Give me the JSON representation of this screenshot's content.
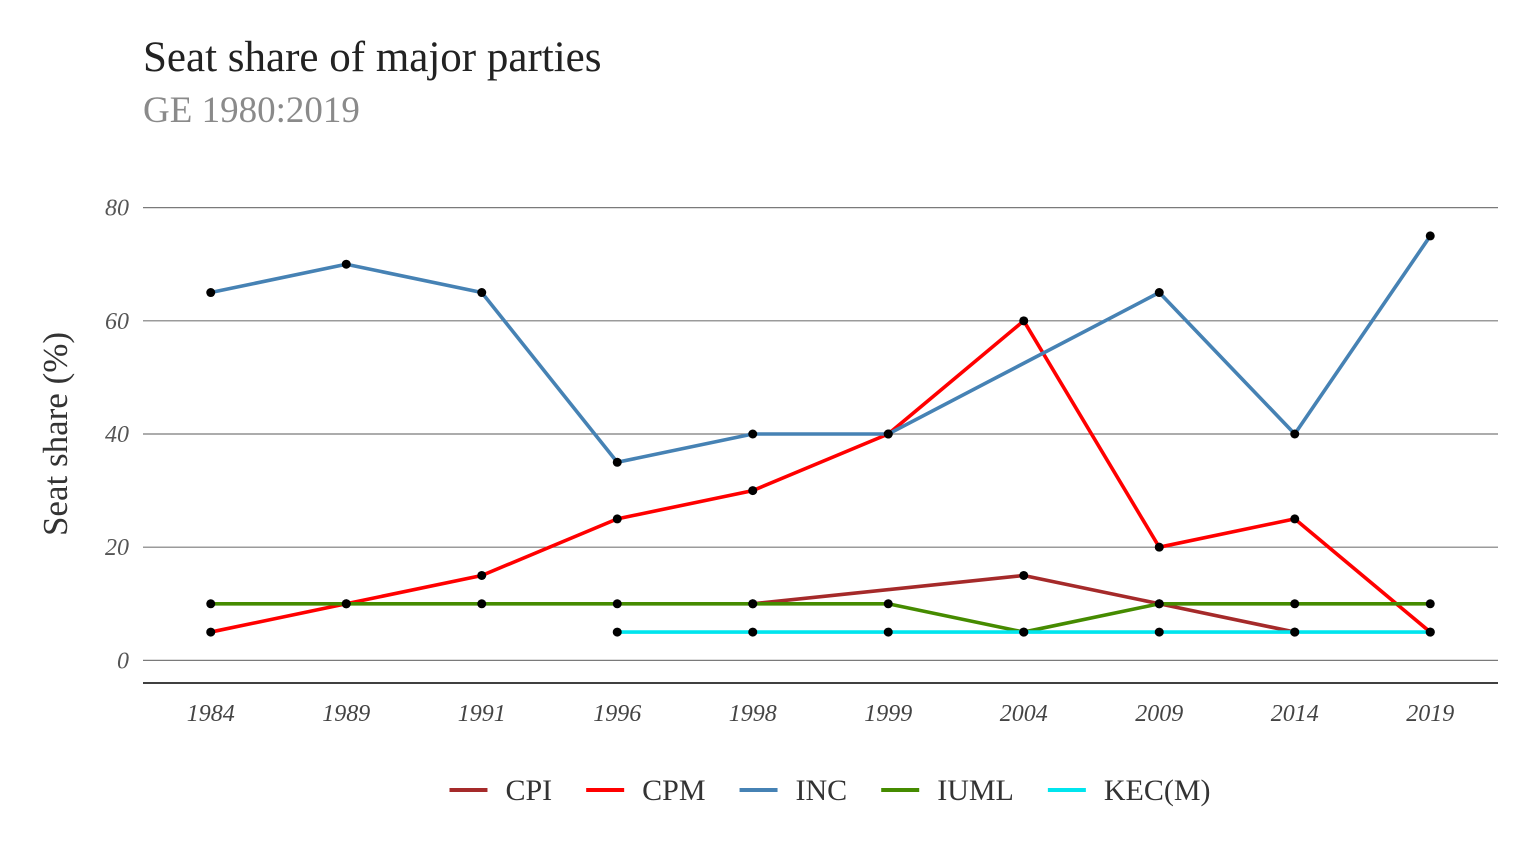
{
  "chart_data": {
    "type": "line",
    "title": "Seat share  of major parties",
    "subtitle": "GE 1980:2019",
    "xlabel": "",
    "ylabel": "Seat share (%)",
    "categories": [
      "1984",
      "1989",
      "1991",
      "1996",
      "1998",
      "1999",
      "2004",
      "2009",
      "2014",
      "2019"
    ],
    "ylim": [
      -4,
      84
    ],
    "yticks": [
      0,
      20,
      40,
      60,
      80
    ],
    "grid": "horizontal",
    "legend_position": "bottom",
    "series": [
      {
        "name": "CPI",
        "color": "#a52a2a",
        "values": [
          null,
          null,
          null,
          null,
          10,
          null,
          15,
          10,
          5,
          null
        ]
      },
      {
        "name": "CPM",
        "color": "#ff0000",
        "values": [
          5,
          10,
          15,
          25,
          30,
          40,
          60,
          20,
          25,
          5
        ]
      },
      {
        "name": "INC",
        "color": "#4682b4",
        "values": [
          65,
          70,
          65,
          35,
          40,
          40,
          null,
          65,
          40,
          75
        ]
      },
      {
        "name": "IUML",
        "color": "#458b00",
        "values": [
          10,
          10,
          10,
          10,
          10,
          10,
          5,
          10,
          10,
          10
        ]
      },
      {
        "name": "KEC(M)",
        "color": "#00e5ee",
        "values": [
          null,
          null,
          null,
          5,
          5,
          5,
          5,
          5,
          5,
          5
        ]
      }
    ],
    "point_color": "#000000"
  }
}
